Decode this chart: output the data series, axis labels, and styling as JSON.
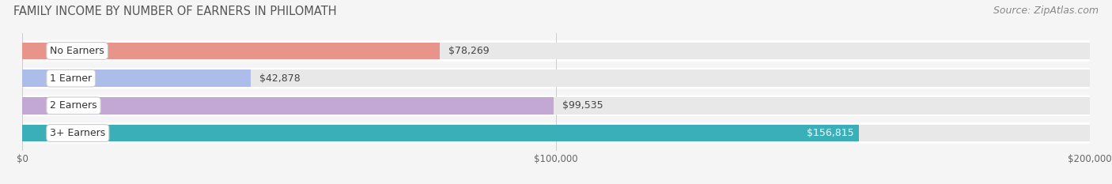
{
  "title": "FAMILY INCOME BY NUMBER OF EARNERS IN PHILOMATH",
  "source": "Source: ZipAtlas.com",
  "categories": [
    "No Earners",
    "1 Earner",
    "2 Earners",
    "3+ Earners"
  ],
  "values": [
    78269,
    42878,
    99535,
    156815
  ],
  "bar_colors": [
    "#E8948A",
    "#ABBDE8",
    "#C4A8D4",
    "#3AAFB8"
  ],
  "background_color": "#f5f5f5",
  "xlim": [
    0,
    200000
  ],
  "xticks": [
    0,
    100000,
    200000
  ],
  "xtick_labels": [
    "$0",
    "$100,000",
    "$200,000"
  ],
  "title_fontsize": 10.5,
  "source_fontsize": 9,
  "bar_height": 0.62,
  "value_fontsize": 9,
  "category_fontsize": 9,
  "track_color": "#e8e8e8",
  "row_bg_color": "#ffffff"
}
